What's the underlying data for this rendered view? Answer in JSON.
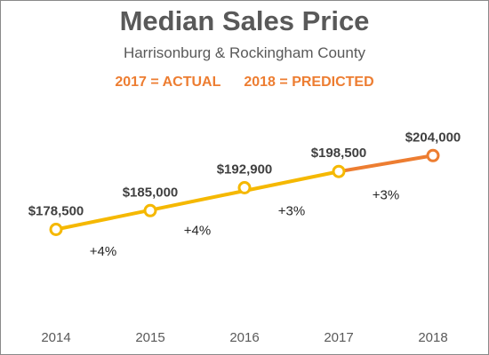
{
  "colors": {
    "actual": "#f5b800",
    "predicted": "#ed7d31",
    "text": "#595959",
    "data_label": "#404040"
  },
  "chart_data": {
    "type": "line",
    "title": "Median Sales Price",
    "subtitle": "Harrisonburg & Rockingham County",
    "legend": [
      "2017 = ACTUAL",
      "2018 = PREDICTED"
    ],
    "categories": [
      "2014",
      "2015",
      "2016",
      "2017",
      "2018"
    ],
    "values": [
      178500,
      185000,
      192900,
      198500,
      204000
    ],
    "data_labels": [
      "$178,500",
      "$185,000",
      "$192,900",
      "$198,500",
      "$204,000"
    ],
    "growth_labels": [
      "+4%",
      "+4%",
      "+3%",
      "+3%"
    ],
    "segments": [
      {
        "kind": "actual",
        "from": 0,
        "to": 3
      },
      {
        "kind": "predicted",
        "from": 3,
        "to": 4
      }
    ],
    "ylim": [
      152000,
      224000
    ],
    "grid": false,
    "xlabel": "",
    "ylabel": ""
  }
}
